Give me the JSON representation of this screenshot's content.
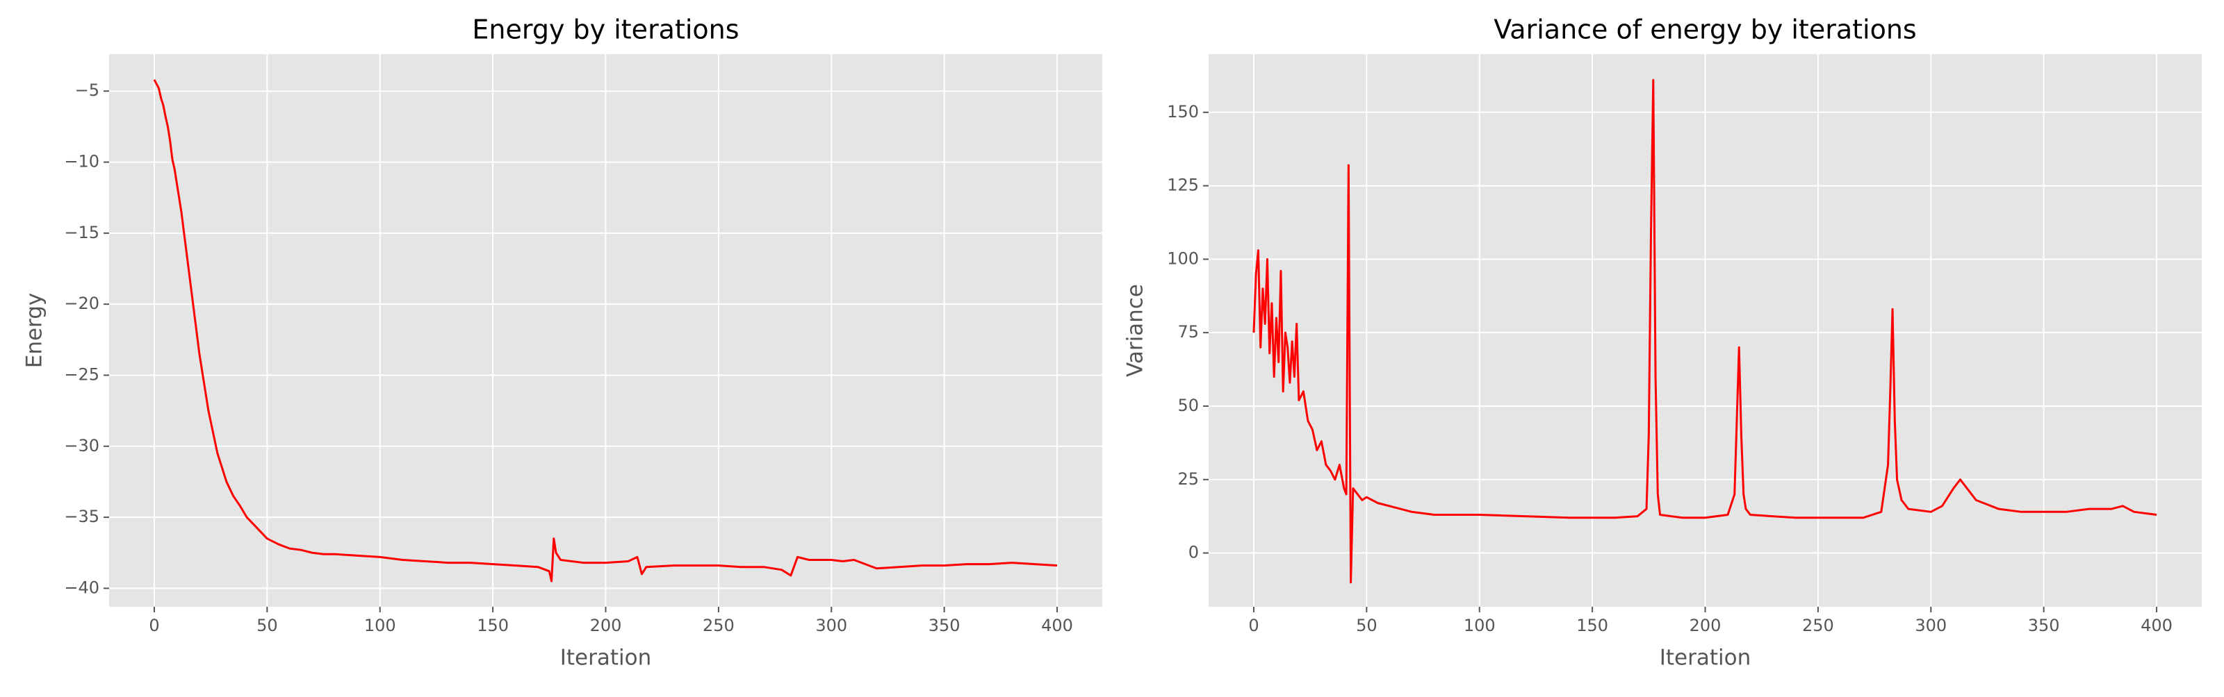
{
  "chart_data": [
    {
      "type": "line",
      "title": "Energy by iterations",
      "xlabel": "Iteration",
      "ylabel": "Energy",
      "color": "#ff0000",
      "grid": true,
      "x": [
        0,
        1,
        2,
        3,
        4,
        5,
        6,
        7,
        8,
        9,
        10,
        12,
        14,
        16,
        18,
        20,
        22,
        24,
        26,
        28,
        30,
        32,
        35,
        38,
        41,
        44,
        47,
        50,
        55,
        60,
        65,
        70,
        75,
        80,
        90,
        100,
        110,
        120,
        130,
        140,
        150,
        160,
        170,
        175,
        176,
        177,
        178,
        180,
        190,
        200,
        210,
        214,
        216,
        218,
        230,
        240,
        250,
        260,
        270,
        278,
        282,
        285,
        290,
        300,
        305,
        310,
        320,
        330,
        340,
        350,
        360,
        370,
        380,
        390,
        400
      ],
      "values": [
        -4.2,
        -4.5,
        -4.8,
        -5.5,
        -6.0,
        -6.8,
        -7.5,
        -8.5,
        -9.8,
        -10.5,
        -11.5,
        -13.5,
        -16,
        -18.5,
        -21,
        -23.5,
        -25.5,
        -27.5,
        -29,
        -30.5,
        -31.5,
        -32.5,
        -33.5,
        -34.2,
        -35,
        -35.5,
        -36,
        -36.5,
        -36.9,
        -37.2,
        -37.3,
        -37.5,
        -37.6,
        -37.6,
        -37.7,
        -37.8,
        -38.0,
        -38.1,
        -38.2,
        -38.2,
        -38.3,
        -38.4,
        -38.5,
        -38.8,
        -39.5,
        -36.5,
        -37.5,
        -38,
        -38.2,
        -38.2,
        -38.1,
        -37.8,
        -39,
        -38.5,
        -38.4,
        -38.4,
        -38.4,
        -38.5,
        -38.5,
        -38.7,
        -39.1,
        -37.8,
        -38,
        -38,
        -38.1,
        -38.0,
        -38.6,
        -38.5,
        -38.4,
        -38.4,
        -38.3,
        -38.3,
        -38.2,
        -38.3,
        -38.4
      ],
      "xlim": [
        -20,
        420
      ],
      "xticks": [
        0,
        50,
        100,
        150,
        200,
        250,
        300,
        350,
        400
      ],
      "ylim": [
        -41.3,
        -2.4
      ],
      "yticks": [
        {
          "value": -40,
          "label": "−40"
        },
        {
          "value": -35,
          "label": "−35"
        },
        {
          "value": -30,
          "label": "−30"
        },
        {
          "value": -25,
          "label": "−25"
        },
        {
          "value": -20,
          "label": "−20"
        },
        {
          "value": -15,
          "label": "−15"
        },
        {
          "value": -10,
          "label": "−10"
        },
        {
          "value": -5,
          "label": "−5"
        }
      ]
    },
    {
      "type": "line",
      "title": "Variance of energy by iterations",
      "xlabel": "Iteration",
      "ylabel": "Variance",
      "color": "#ff0000",
      "grid": true,
      "x": [
        0,
        1,
        2,
        3,
        4,
        5,
        6,
        7,
        8,
        9,
        10,
        11,
        12,
        13,
        14,
        15,
        16,
        17,
        18,
        19,
        20,
        22,
        24,
        26,
        28,
        30,
        32,
        34,
        36,
        38,
        40,
        41,
        42,
        43,
        44,
        46,
        48,
        50,
        55,
        60,
        65,
        70,
        80,
        90,
        100,
        120,
        140,
        160,
        170,
        174,
        175,
        176,
        177,
        178,
        179,
        180,
        190,
        200,
        210,
        213,
        214,
        215,
        216,
        217,
        218,
        220,
        240,
        260,
        270,
        278,
        281,
        282,
        283,
        284,
        285,
        287,
        290,
        300,
        305,
        310,
        313,
        316,
        320,
        330,
        340,
        350,
        360,
        370,
        380,
        385,
        390,
        400
      ],
      "values": [
        75,
        95,
        103,
        70,
        90,
        78,
        100,
        68,
        85,
        60,
        80,
        65,
        96,
        55,
        75,
        70,
        58,
        72,
        60,
        78,
        52,
        55,
        45,
        42,
        35,
        38,
        30,
        28,
        25,
        30,
        22,
        20,
        132,
        -10,
        22,
        20,
        18,
        19,
        17,
        16,
        15,
        14,
        13,
        13,
        13,
        12.5,
        12,
        12,
        12.5,
        15,
        40,
        110,
        161,
        60,
        20,
        13,
        12,
        12,
        13,
        20,
        45,
        70,
        40,
        20,
        15,
        13,
        12,
        12,
        12,
        14,
        30,
        55,
        83,
        45,
        25,
        18,
        15,
        14,
        16,
        22,
        25,
        22,
        18,
        15,
        14,
        14,
        14,
        15,
        15,
        16,
        14,
        13
      ],
      "xlim": [
        -20,
        420
      ],
      "xticks": [
        0,
        50,
        100,
        150,
        200,
        250,
        300,
        350,
        400
      ],
      "ylim": [
        -18.3,
        169.8
      ],
      "yticks": [
        0,
        25,
        50,
        75,
        100,
        125,
        150
      ]
    }
  ]
}
